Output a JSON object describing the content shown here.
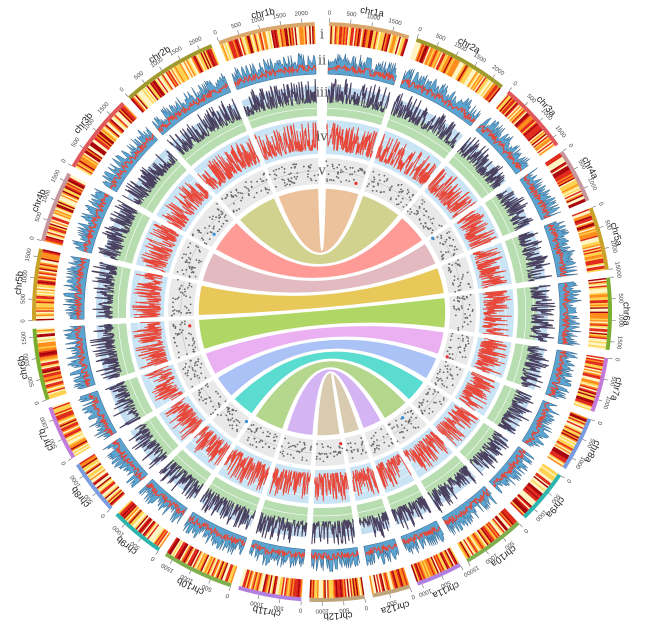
{
  "figure": {
    "track_labels": [
      "i",
      "ii",
      "iii",
      "iv",
      "v"
    ]
  },
  "chromosomes": [
    {
      "id": "chr1a",
      "label": "chr1a",
      "length": 1900,
      "color": "#D9A66B"
    },
    {
      "id": "chr2a",
      "label": "chr2a",
      "length": 2300,
      "color": "#9E9A2E"
    },
    {
      "id": "chr3a",
      "label": "chr3a",
      "length": 1700,
      "color": "#E0575C"
    },
    {
      "id": "chr4a",
      "label": "chr4a",
      "length": 1300,
      "color": "#C7959C"
    },
    {
      "id": "chr5a",
      "label": "chr5a",
      "length": 1500,
      "color": "#C9A227"
    },
    {
      "id": "chr6a",
      "label": "chr6a",
      "length": 1700,
      "color": "#7BAE2E"
    },
    {
      "id": "chr7a",
      "label": "chr7a",
      "length": 1300,
      "color": "#C27BD9"
    },
    {
      "id": "chr8a",
      "label": "chr8a",
      "length": 1300,
      "color": "#7B9BE0"
    },
    {
      "id": "chr9a",
      "label": "chr9a",
      "length": 1300,
      "color": "#2BB5AE"
    },
    {
      "id": "chr10a",
      "label": "chr10a",
      "length": 1500,
      "color": "#7FAE4E"
    },
    {
      "id": "chr11a",
      "label": "chr11a",
      "length": 1100,
      "color": "#B07FE0"
    },
    {
      "id": "chr12a",
      "label": "chr12a",
      "length": 900,
      "color": "#BFA57A"
    },
    {
      "id": "chr12b",
      "label": "chr12b",
      "length": 1300,
      "color": "#BFA57A"
    },
    {
      "id": "chr11b",
      "label": "chr11b",
      "length": 1500,
      "color": "#B07FE0"
    },
    {
      "id": "chr10b",
      "label": "chr10b",
      "length": 1700,
      "color": "#7FAE4E"
    },
    {
      "id": "chr9b",
      "label": "chr9b",
      "length": 1300,
      "color": "#2BB5AE"
    },
    {
      "id": "chr8b",
      "label": "chr8b",
      "length": 1300,
      "color": "#7B9BE0"
    },
    {
      "id": "chr7b",
      "label": "chr7b",
      "length": 1300,
      "color": "#C27BD9"
    },
    {
      "id": "chr6b",
      "label": "chr6b",
      "length": 1700,
      "color": "#7BAE2E"
    },
    {
      "id": "chr5b",
      "label": "chr5b",
      "length": 1700,
      "color": "#C9A227"
    },
    {
      "id": "chr4b",
      "label": "chr4b",
      "length": 1700,
      "color": "#C7959C"
    },
    {
      "id": "chr3b",
      "label": "chr3b",
      "length": 1900,
      "color": "#E0575C"
    },
    {
      "id": "chr2b",
      "label": "chr2b",
      "length": 2300,
      "color": "#9E9A2E"
    },
    {
      "id": "chr1b",
      "label": "chr1b",
      "length": 2300,
      "color": "#D9A66B"
    }
  ],
  "ticks": {
    "chr1a": [
      "0",
      "500",
      "1000",
      "1500"
    ],
    "chr2a": [
      "0",
      "500",
      "1000",
      "1500",
      "2000"
    ],
    "chr3a": [
      "0",
      "500",
      "1000",
      "1500"
    ],
    "chr4a": [
      "0",
      "500",
      "1000"
    ],
    "chr5a": [
      "0",
      "500",
      "1000",
      "1500"
    ],
    "chr6a": [
      "0",
      "500",
      "1000",
      "1500"
    ],
    "chr7a": [
      "0",
      "500",
      "1000"
    ],
    "chr8a": [
      "0",
      "500",
      "1000"
    ],
    "chr9a": [
      "0",
      "500",
      "1000"
    ],
    "chr10a": [
      "0",
      "500",
      "1000",
      "1500"
    ],
    "chr11a": [
      "0",
      "500",
      "1000"
    ],
    "chr12a": [
      "0",
      "500"
    ],
    "chr12b": [
      "0",
      "500",
      "1000"
    ],
    "chr11b": [
      "0",
      "500",
      "1000"
    ],
    "chr10b": [
      "0",
      "500",
      "1000",
      "1500"
    ],
    "chr9b": [
      "0",
      "500",
      "1000"
    ],
    "chr8b": [
      "0",
      "500",
      "1000"
    ],
    "chr7b": [
      "0",
      "500",
      "1000"
    ],
    "chr6b": [
      "0",
      "500",
      "1000",
      "1500"
    ],
    "chr5b": [
      "0",
      "500",
      "1000",
      "1500"
    ],
    "chr4b": [
      "0",
      "500",
      "1000",
      "1500"
    ],
    "chr3b": [
      "0",
      "500",
      "1000",
      "1500"
    ],
    "chr2b": [
      "0",
      "500",
      "1000",
      "1500",
      "2000"
    ],
    "chr1b": [
      "0",
      "500",
      "1000",
      "1500",
      "2000"
    ]
  },
  "links": [
    {
      "a": "chr1a",
      "b": "chr1b",
      "color": "#E8B88A"
    },
    {
      "a": "chr2a",
      "b": "chr2b",
      "color": "#C9CB7A"
    },
    {
      "a": "chr3a",
      "b": "chr3b",
      "color": "#FF8A85"
    },
    {
      "a": "chr4a",
      "b": "chr4b",
      "color": "#DDAFB5"
    },
    {
      "a": "chr5a",
      "b": "chr5b",
      "color": "#E6BF3E"
    },
    {
      "a": "chr6a",
      "b": "chr6b",
      "color": "#A3D14B"
    },
    {
      "a": "chr7a",
      "b": "chr7b",
      "color": "#E8A3F0"
    },
    {
      "a": "chr8a",
      "b": "chr8b",
      "color": "#9DB8F5"
    },
    {
      "a": "chr9a",
      "b": "chr9b",
      "color": "#3FD6C8"
    },
    {
      "a": "chr10a",
      "b": "chr10b",
      "color": "#A8CF7A"
    },
    {
      "a": "chr11a",
      "b": "chr11b",
      "color": "#CDA8F2"
    },
    {
      "a": "chr12a",
      "b": "chr12b",
      "color": "#D2C2A2"
    }
  ],
  "colors": {
    "heat": [
      "#FFF4C2",
      "#FFD24D",
      "#FF8C1A",
      "#E0281A",
      "#A8000A"
    ],
    "density_fill": "#5BA4CF",
    "density_line": "#E8483A",
    "track3_band": "#B7DDB0",
    "track3_band2": "#A9CFEA",
    "track3_line": "#4A4060",
    "track4_bg": "#C9E4F5",
    "track4_line": "#E8483A",
    "track5_bg": "#E9E9E9",
    "track5_points": "#666666",
    "highlight_red": "#E83030",
    "highlight_blue": "#3A8FD6"
  }
}
